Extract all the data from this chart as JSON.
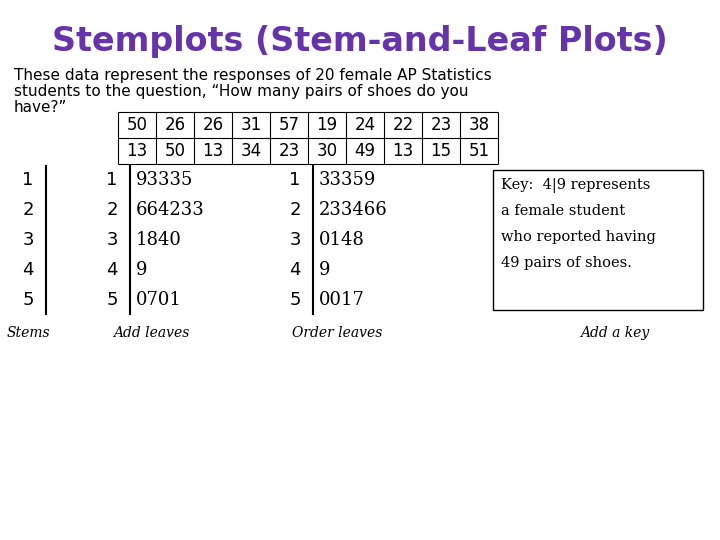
{
  "title": "Stemplots (Stem-and-Leaf Plots)",
  "title_color": "#6633aa",
  "subtitle_line1": "These data represent the responses of 20 female AP Statistics",
  "subtitle_line2": "students to the question, “How many pairs of shoes do you",
  "subtitle_line3": "have?”",
  "table_row1": [
    "50",
    "26",
    "26",
    "31",
    "57",
    "19",
    "24",
    "22",
    "23",
    "38"
  ],
  "table_row2": [
    "13",
    "50",
    "13",
    "34",
    "23",
    "30",
    "49",
    "13",
    "15",
    "51"
  ],
  "stems": [
    "1",
    "2",
    "3",
    "4",
    "5"
  ],
  "leaves_raw": [
    "93335",
    "664233",
    "1840",
    "9",
    "0701"
  ],
  "leaves_ordered": [
    "33359",
    "233466",
    "0148",
    "9",
    "0017"
  ],
  "stem_label": "Stems",
  "label_add_leaves": "Add leaves",
  "label_order_leaves": "Order leaves",
  "label_add_key": "Add a key",
  "key_lines": [
    "Key:  4|9 represents",
    "a female student",
    "who reported having",
    "49 pairs of shoes."
  ],
  "bg_color": "#ffffff",
  "fig_width": 7.2,
  "fig_height": 5.4,
  "dpi": 100
}
